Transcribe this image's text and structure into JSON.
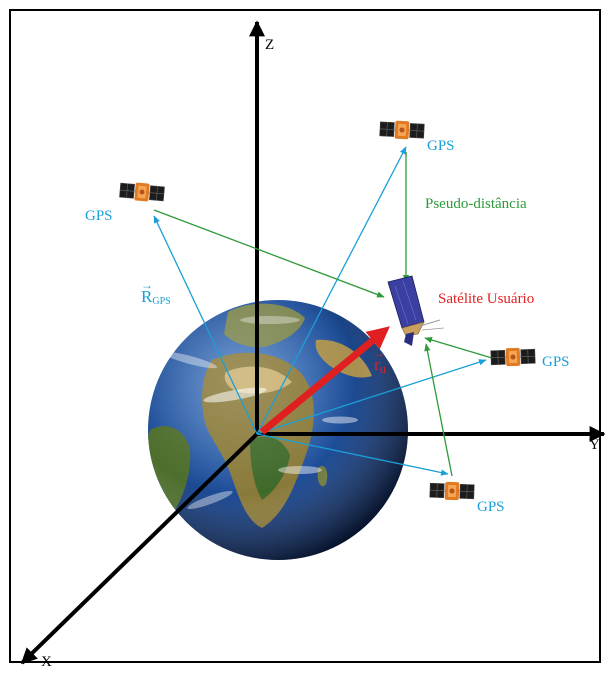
{
  "axes": {
    "z": "Z",
    "y": "Y",
    "x": "X"
  },
  "labels": {
    "gps_top": "GPS",
    "gps_left": "GPS",
    "gps_right": "GPS",
    "gps_bottom": "GPS",
    "pseudo_distance": "Pseudo-distância",
    "user_satellite": "Satélite Usuário",
    "r_gps_main": "R",
    "r_gps_sub": "GPS",
    "r_u_main": "r",
    "r_u_sub": "u"
  },
  "colors": {
    "position_vector": "#1a9fd8",
    "pseudo_range": "#2e9a3a",
    "user_vector": "#e02020",
    "axes": "#000000"
  }
}
